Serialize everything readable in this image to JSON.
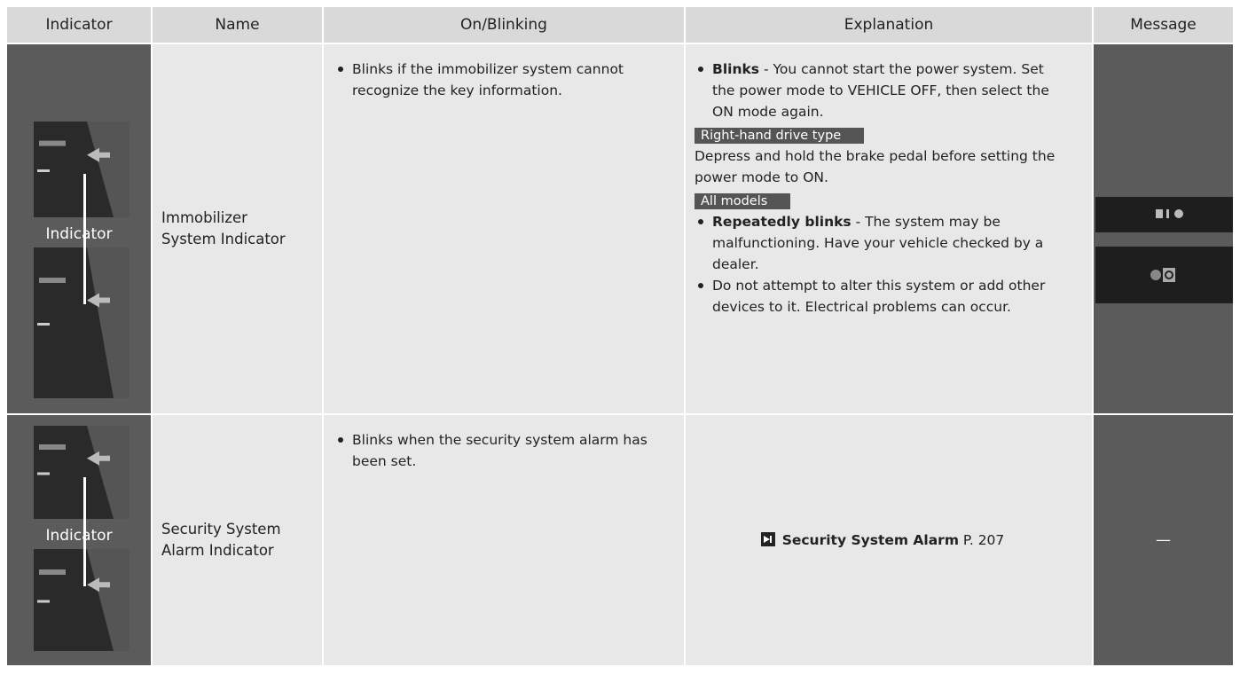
{
  "table": {
    "headers": [
      "Indicator",
      "Name",
      "On/Blinking",
      "Explanation",
      "Message"
    ],
    "rows": [
      {
        "indicator_label": "Indicator",
        "name": [
          "Immobilizer",
          "System Indicator"
        ],
        "on_blinking": [
          "Blinks if the immobilizer system cannot recognize the key information."
        ],
        "explanation": [
          {
            "kind": "bullet",
            "bold": "Blinks",
            "text": " - You cannot start the power system. Set the power mode to VEHICLE OFF, then select the ON mode again."
          },
          {
            "kind": "tag",
            "text": "Right-hand drive type"
          },
          {
            "kind": "plain",
            "text": "Depress and hold the brake pedal before setting the power mode to ON."
          },
          {
            "kind": "tag",
            "text": "All models"
          },
          {
            "kind": "bullet",
            "bold": "Repeatedly blinks",
            "text": " - The system may be malfunctioning. Have your vehicle checked by a dealer."
          },
          {
            "kind": "bullet",
            "text": "Do not attempt to alter this system or add other devices to it. Electrical problems can occur."
          }
        ]
      },
      {
        "indicator_label": "Indicator",
        "name": [
          "Security System",
          "Alarm Indicator"
        ],
        "on_blinking": [
          "Blinks when the security system alarm has been set."
        ],
        "explanation": [
          {
            "kind": "ref",
            "bold": "Security System Alarm",
            "text": " P. 207"
          }
        ],
        "message": "—"
      }
    ]
  }
}
